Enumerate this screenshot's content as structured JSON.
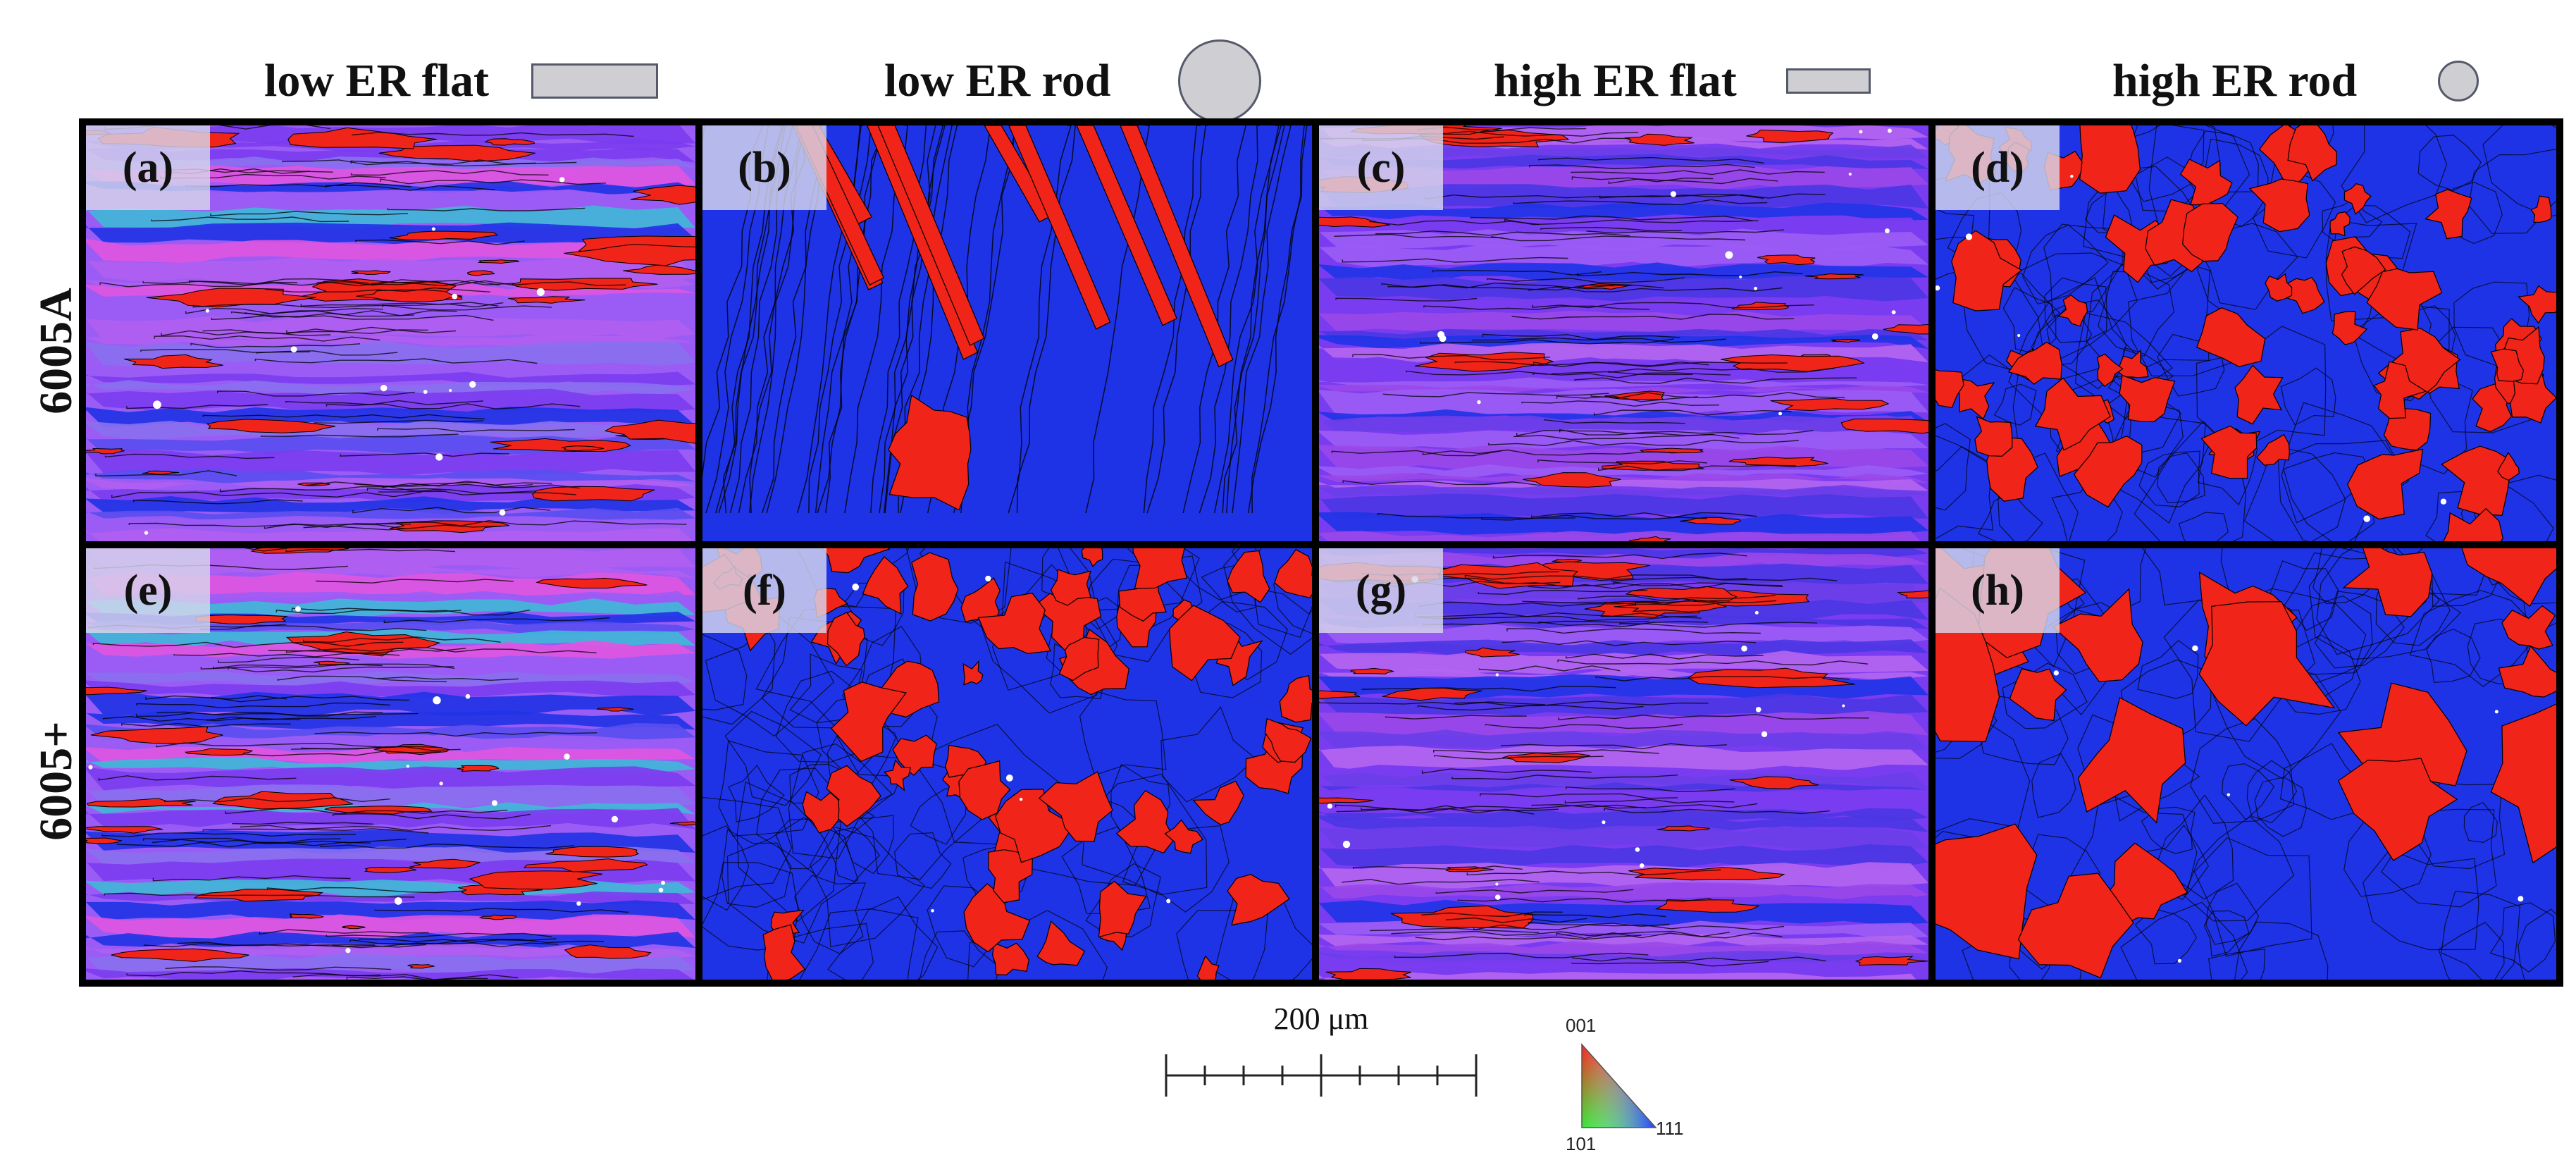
{
  "columns": [
    {
      "label": "low ER flat",
      "shape": "flat-large"
    },
    {
      "label": "low ER rod",
      "shape": "rod-large"
    },
    {
      "label": "high ER flat",
      "shape": "flat-small"
    },
    {
      "label": "high ER rod",
      "shape": "rod-small"
    }
  ],
  "rows": [
    {
      "label": "6005A"
    },
    {
      "label": "6005+"
    }
  ],
  "panels": [
    {
      "label": "(a)",
      "style": "mixed-banded",
      "alloy": "6005A",
      "sample": "low ER flat"
    },
    {
      "label": "(b)",
      "style": "blue-red-streaks",
      "alloy": "6005A",
      "sample": "low ER rod"
    },
    {
      "label": "(c)",
      "style": "purple-banded",
      "alloy": "6005A",
      "sample": "high ER flat"
    },
    {
      "label": "(d)",
      "style": "blue-red-patches",
      "alloy": "6005A",
      "sample": "high ER rod"
    },
    {
      "label": "(e)",
      "style": "mixed-banded",
      "alloy": "6005+",
      "sample": "low ER flat"
    },
    {
      "label": "(f)",
      "style": "blue-red-patches",
      "alloy": "6005+",
      "sample": "low ER rod"
    },
    {
      "label": "(g)",
      "style": "purple-banded",
      "alloy": "6005+",
      "sample": "high ER flat"
    },
    {
      "label": "(h)",
      "style": "blue-red-large",
      "alloy": "6005+",
      "sample": "high ER rod"
    }
  ],
  "scale_bar": {
    "label": "200 μm",
    "length_um": 200,
    "minor_divisions": 8
  },
  "color_key": {
    "top": "001",
    "bottom_left": "101",
    "bottom_right": "111"
  },
  "colors": {
    "grain_blue": "#1f33e6",
    "grain_red": "#f02418",
    "grain_purple": "#7a3cf0",
    "grain_violet": "#9b5cf5",
    "grain_pink": "#e055e0",
    "boundary": "#000000",
    "shape_fill": "#cfcfd3",
    "shape_stroke": "#55596a"
  }
}
